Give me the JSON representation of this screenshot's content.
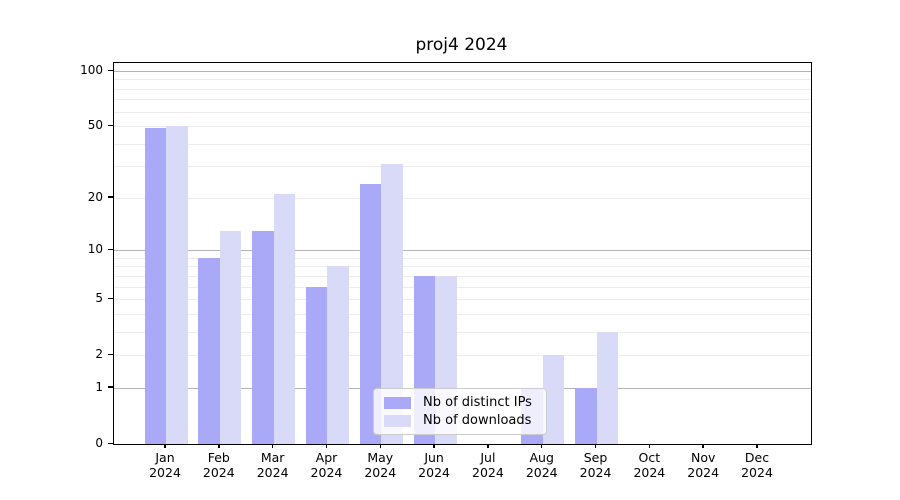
{
  "title": "proj4 2024",
  "chart_data": {
    "type": "bar",
    "title": "proj4 2024",
    "categories": [
      "Jan 2024",
      "Feb 2024",
      "Mar 2024",
      "Apr 2024",
      "May 2024",
      "Jun 2024",
      "Jul 2024",
      "Aug 2024",
      "Sep 2024",
      "Oct 2024",
      "Nov 2024",
      "Dec 2024"
    ],
    "months": [
      "Jan",
      "Feb",
      "Mar",
      "Apr",
      "May",
      "Jun",
      "Jul",
      "Aug",
      "Sep",
      "Oct",
      "Nov",
      "Dec"
    ],
    "year": "2024",
    "series": [
      {
        "name": "Nb of distinct IPs",
        "color": "#a9a9f7",
        "values": [
          49,
          9,
          13,
          6,
          24,
          7,
          0,
          1,
          1,
          0,
          0,
          0
        ]
      },
      {
        "name": "Nb of downloads",
        "color": "#d9d9f8",
        "values": [
          50,
          13,
          21,
          8,
          31,
          7,
          0,
          2,
          3,
          0,
          0,
          0
        ]
      }
    ],
    "xlabel": "",
    "ylabel": "",
    "yscale": "log10(1+v)",
    "ylim": [
      0,
      111
    ],
    "y_ticks": [
      0,
      1,
      2,
      5,
      10,
      20,
      50,
      100
    ],
    "y_strong_gridlines": [
      1,
      10,
      100
    ],
    "y_minor_gridlines": [
      3,
      4,
      6,
      7,
      8,
      9,
      30,
      40,
      60,
      70,
      80,
      90
    ],
    "grid": true,
    "legend_location": "lower center"
  },
  "colors": {
    "grid_minor": "#ececec",
    "grid_strong": "#b4b4b4",
    "axis": "#000000",
    "background": "#ffffff"
  }
}
